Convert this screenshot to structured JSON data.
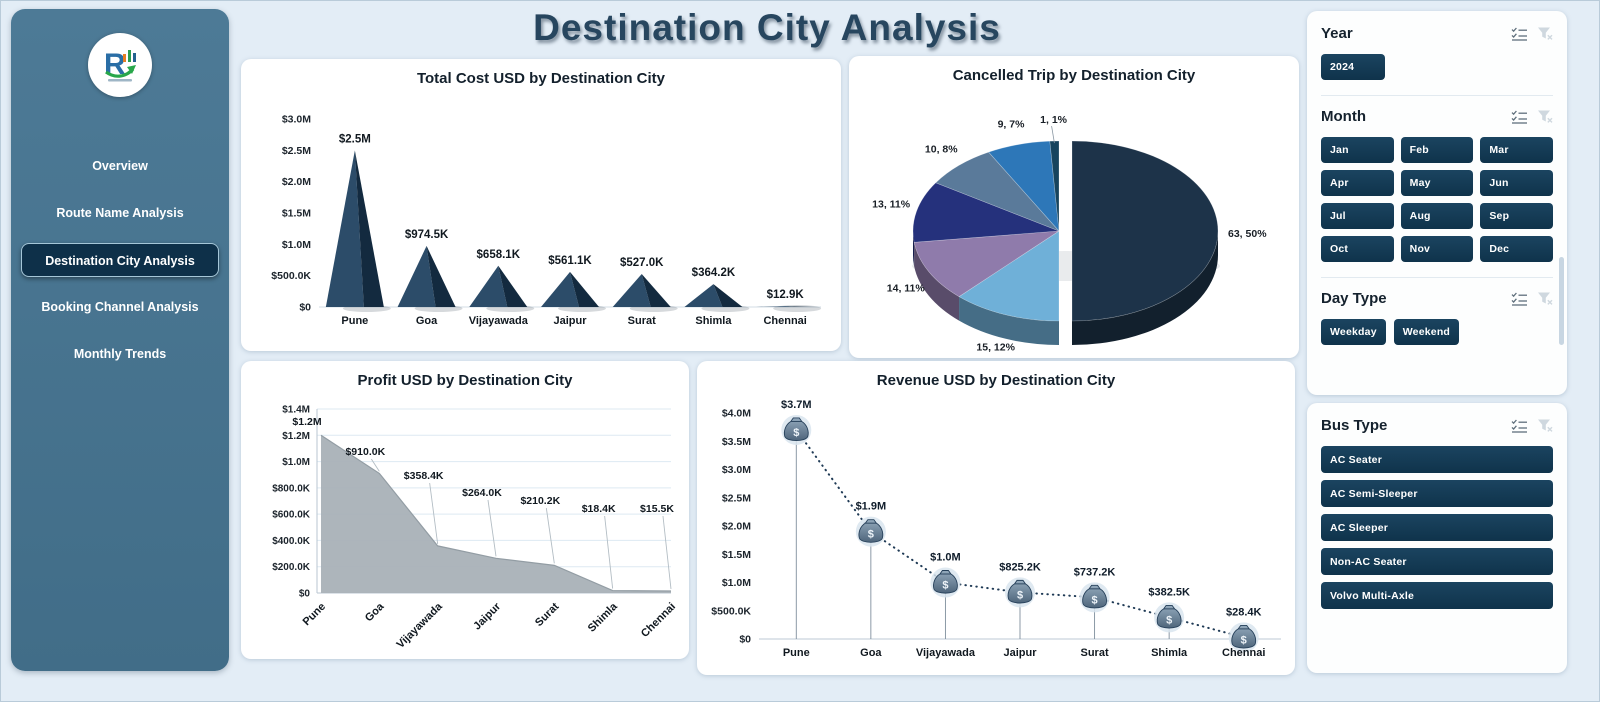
{
  "title": "Destination City  Analysis",
  "sidebar": {
    "items": [
      {
        "label": "Overview",
        "active": false
      },
      {
        "label": "Route Name Analysis",
        "active": false
      },
      {
        "label": "Destination City  Analysis",
        "active": true
      },
      {
        "label": "Booking Channel Analysis",
        "active": false
      },
      {
        "label": "Monthly Trends",
        "active": false
      }
    ]
  },
  "filters": [
    {
      "id": "year",
      "label": "Year",
      "layout": "inline",
      "panel": "a",
      "options": [
        "2024"
      ]
    },
    {
      "id": "month",
      "label": "Month",
      "layout": "grid3",
      "panel": "a",
      "options": [
        "Jan",
        "Feb",
        "Mar",
        "Apr",
        "May",
        "Jun",
        "Jul",
        "Aug",
        "Sep",
        "Oct",
        "Nov",
        "Dec"
      ]
    },
    {
      "id": "day-type",
      "label": "Day Type",
      "layout": "inline",
      "panel": "a",
      "options": [
        "Weekday",
        "Weekend"
      ]
    },
    {
      "id": "bus-type",
      "label": "Bus Type",
      "layout": "stack",
      "panel": "b",
      "options": [
        "AC Seater",
        "AC Semi-Sleeper",
        "AC Sleeper",
        "Non-AC Seater",
        "Volvo Multi-Axle"
      ]
    }
  ],
  "colors": {
    "sidebar": "#47748f",
    "accent_dark": "#14364f",
    "title": "#27465f",
    "pyramid_light": "#2c4c69",
    "pyramid_dark": "#132a3f",
    "area_fill": "#a9b1b7",
    "line_dotted": "#1f3a55"
  },
  "chart_data": [
    {
      "type": "bar",
      "style": "pyramid",
      "title": "Total Cost USD by Destination City",
      "categories": [
        "Pune",
        "Goa",
        "Vijayawada",
        "Jaipur",
        "Surat",
        "Shimla",
        "Chennai"
      ],
      "values": [
        2500000,
        974500,
        658100,
        561100,
        527000,
        364200,
        12900
      ],
      "labels": [
        "$2.5M",
        "$974.5K",
        "$658.1K",
        "$561.1K",
        "$527.0K",
        "$364.2K",
        "$12.9K"
      ],
      "ylabels": [
        "$0",
        "$500.0K",
        "$1.0M",
        "$1.5M",
        "$2.0M",
        "$2.5M",
        "$3.0M"
      ],
      "ylim": [
        0,
        3000000
      ],
      "xlabel": "",
      "ylabel": ""
    },
    {
      "type": "pie",
      "title": "Cancelled Trip by Destination City",
      "slices": [
        {
          "label": "63, 50%",
          "value": 63,
          "pct": 50,
          "color": "#1d3349",
          "exploded": true
        },
        {
          "label": "15, 12%",
          "value": 15,
          "pct": 12,
          "color": "#6fb0d8",
          "exploded": false
        },
        {
          "label": "14, 11%",
          "value": 14,
          "pct": 11,
          "color": "#8f7bab",
          "exploded": false
        },
        {
          "label": "13, 11%",
          "value": 13,
          "pct": 11,
          "color": "#25317c",
          "exploded": false
        },
        {
          "label": "10, 8%",
          "value": 10,
          "pct": 8,
          "color": "#5a7a9a",
          "exploded": false
        },
        {
          "label": "9, 7%",
          "value": 9,
          "pct": 7,
          "color": "#2d77b8",
          "exploded": false
        },
        {
          "label": "1, 1%",
          "value": 1,
          "pct": 1,
          "color": "#17445e",
          "exploded": false
        }
      ]
    },
    {
      "type": "area",
      "title": "Profit USD by Destination City",
      "categories": [
        "Pune",
        "Goa",
        "Vijayawada",
        "Jaipur",
        "Surat",
        "Shimla",
        "Chennai"
      ],
      "values": [
        1200000,
        910000,
        358400,
        264000,
        210200,
        18400,
        15500
      ],
      "labels": [
        "$1.2M",
        "$910.0K",
        "$358.4K",
        "$264.0K",
        "$210.2K",
        "$18.4K",
        "$15.5K"
      ],
      "ylabels": [
        "$0",
        "$200.0K",
        "$400.0K",
        "$600.0K",
        "$800.0K",
        "$1.0M",
        "$1.2M",
        "$1.4M"
      ],
      "ylim": [
        0,
        1400000
      ],
      "xlabel": "",
      "ylabel": ""
    },
    {
      "type": "line",
      "title": "Revenue USD by Destination City",
      "categories": [
        "Pune",
        "Goa",
        "Vijayawada",
        "Jaipur",
        "Surat",
        "Shimla",
        "Chennai"
      ],
      "values": [
        3700000,
        1900000,
        1000000,
        825200,
        737200,
        382500,
        28400
      ],
      "labels": [
        "$3.7M",
        "$1.9M",
        "$1.0M",
        "$825.2K",
        "$737.2K",
        "$382.5K",
        "$28.4K"
      ],
      "ylabels": [
        "$0",
        "$500.0K",
        "$1.0M",
        "$1.5M",
        "$2.0M",
        "$2.5M",
        "$3.0M",
        "$3.5M",
        "$4.0M"
      ],
      "ylim": [
        0,
        4000000
      ],
      "xlabel": "",
      "ylabel": ""
    }
  ]
}
